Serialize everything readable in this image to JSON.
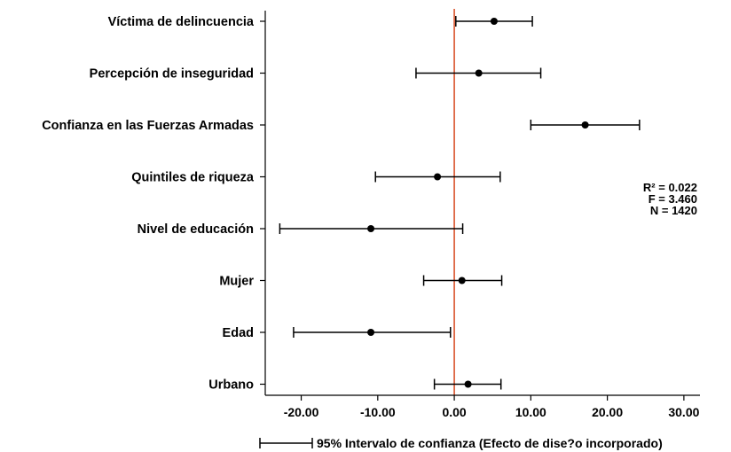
{
  "chart_data": {
    "type": "coefficient_plot",
    "x_ticks": [
      -20,
      -10,
      0,
      10,
      20,
      30
    ],
    "x_tick_labels": [
      "-20.00",
      "-10.00",
      "0.00",
      "10.00",
      "20.00",
      "30.00"
    ],
    "xlim": [
      -24.7,
      32.1
    ],
    "reference_line": {
      "x": 0,
      "color": "#d9532c"
    },
    "marker_color": "#000000",
    "rows": [
      {
        "label": "Víctima de delincuencia",
        "estimate": 5.2,
        "ci_low": 0.2,
        "ci_high": 10.2
      },
      {
        "label": "Percepción de inseguridad",
        "estimate": 3.2,
        "ci_low": -5.0,
        "ci_high": 11.3
      },
      {
        "label": "Confianza en las Fuerzas Armadas",
        "estimate": 17.1,
        "ci_low": 10.0,
        "ci_high": 24.2
      },
      {
        "label": "Quintiles de riqueza",
        "estimate": -2.2,
        "ci_low": -10.3,
        "ci_high": 6.0
      },
      {
        "label": "Nivel de educación",
        "estimate": -10.9,
        "ci_low": -22.8,
        "ci_high": 1.1
      },
      {
        "label": "Mujer",
        "estimate": 1.0,
        "ci_low": -4.0,
        "ci_high": 6.2
      },
      {
        "label": "Edad",
        "estimate": -10.9,
        "ci_low": -21.0,
        "ci_high": -0.5
      },
      {
        "label": "Urbano",
        "estimate": 1.8,
        "ci_low": -2.6,
        "ci_high": 6.1
      }
    ],
    "stats": [
      "R² = 0.022",
      "F = 3.460",
      "N = 1420"
    ],
    "legend": "95% Intervalo de confianza (Efecto de dise?o incorporado)"
  }
}
